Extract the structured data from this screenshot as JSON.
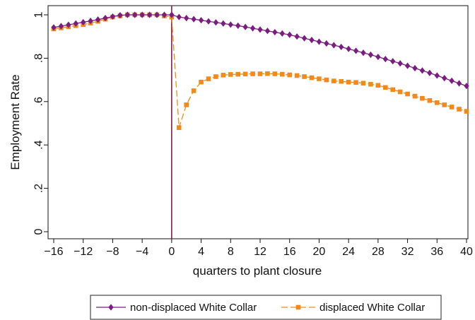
{
  "chart_data": {
    "type": "line",
    "xlabel": "quarters to plant closure",
    "ylabel": "Employment Rate",
    "xlim": [
      -16,
      40
    ],
    "ylim": [
      0,
      1
    ],
    "x_ticks": [
      -16,
      -12,
      -8,
      -4,
      0,
      4,
      8,
      12,
      16,
      20,
      24,
      28,
      32,
      36,
      40
    ],
    "x_tick_labels": [
      "−16",
      "−12",
      "−8",
      "−4",
      "0",
      "4",
      "8",
      "12",
      "16",
      "20",
      "24",
      "28",
      "32",
      "36",
      "40"
    ],
    "y_ticks": [
      0,
      0.2,
      0.4,
      0.6,
      0.8,
      1
    ],
    "y_tick_labels": [
      "0",
      ".2",
      ".4",
      ".6",
      ".8",
      "1"
    ],
    "vertical_line_x": 0,
    "vertical_line_color": "#8b1a4a",
    "grid": false,
    "legend_position": "bottom",
    "x": [
      -16,
      -15,
      -14,
      -13,
      -12,
      -11,
      -10,
      -9,
      -8,
      -7,
      -6,
      -5,
      -4,
      -3,
      -2,
      -1,
      0,
      1,
      2,
      3,
      4,
      5,
      6,
      7,
      8,
      9,
      10,
      11,
      12,
      13,
      14,
      15,
      16,
      17,
      18,
      19,
      20,
      21,
      22,
      23,
      24,
      25,
      26,
      27,
      28,
      29,
      30,
      31,
      32,
      33,
      34,
      35,
      36,
      37,
      38,
      39,
      40
    ],
    "series": [
      {
        "name": "non-displaced White Collar",
        "color": "#7a1c80",
        "marker": "diamond",
        "values": [
          0.942,
          0.948,
          0.954,
          0.96,
          0.966,
          0.972,
          0.978,
          0.985,
          0.992,
          0.998,
          1.0,
          1.0,
          1.0,
          1.0,
          1.0,
          1.0,
          1.0,
          0.99,
          0.985,
          0.98,
          0.975,
          0.97,
          0.965,
          0.96,
          0.955,
          0.95,
          0.944,
          0.938,
          0.932,
          0.926,
          0.92,
          0.914,
          0.908,
          0.9,
          0.892,
          0.884,
          0.876,
          0.868,
          0.86,
          0.852,
          0.843,
          0.834,
          0.825,
          0.816,
          0.806,
          0.796,
          0.786,
          0.776,
          0.765,
          0.754,
          0.743,
          0.732,
          0.72,
          0.708,
          0.696,
          0.684,
          0.672
        ]
      },
      {
        "name": "displaced White Collar",
        "color": "#f28a1a",
        "marker": "square",
        "values": [
          0.935,
          0.94,
          0.945,
          0.95,
          0.955,
          0.962,
          0.97,
          0.98,
          0.99,
          0.995,
          1.0,
          1.0,
          1.0,
          1.0,
          1.0,
          0.995,
          0.99,
          0.48,
          0.585,
          0.65,
          0.69,
          0.705,
          0.715,
          0.722,
          0.725,
          0.726,
          0.727,
          0.728,
          0.728,
          0.729,
          0.728,
          0.726,
          0.723,
          0.72,
          0.715,
          0.71,
          0.705,
          0.7,
          0.695,
          0.693,
          0.69,
          0.688,
          0.685,
          0.68,
          0.675,
          0.665,
          0.655,
          0.645,
          0.635,
          0.625,
          0.615,
          0.605,
          0.595,
          0.585,
          0.575,
          0.565,
          0.555
        ]
      }
    ],
    "legend": [
      "non-displaced White Collar",
      "displaced White Collar"
    ]
  }
}
